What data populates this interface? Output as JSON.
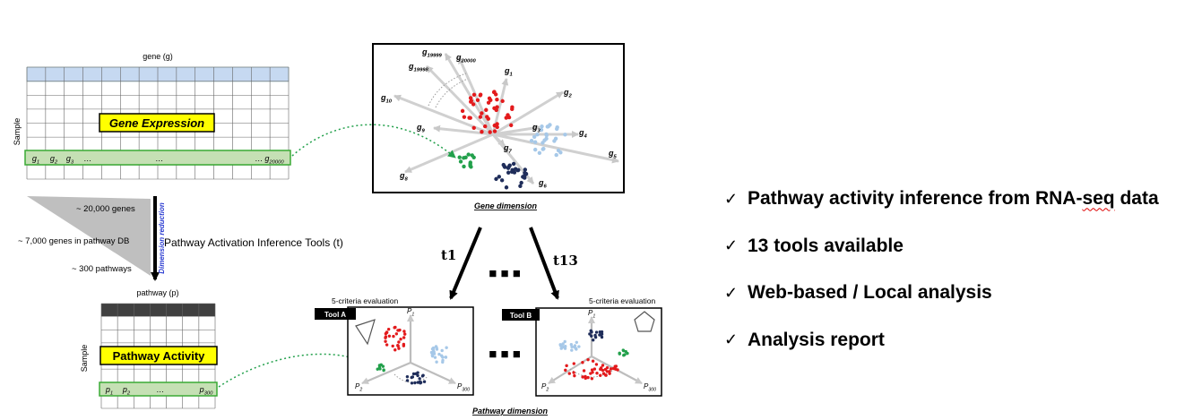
{
  "colors": {
    "expr_header": "#c6d9f1",
    "pathway_header": "#404040",
    "highlight_row": "#c5e0b4",
    "highlight_border": "#3aaa35",
    "label_box": "#ffff00",
    "red": "#e31a1c",
    "light_blue": "#a6c8e8",
    "navy": "#1f2d5a",
    "green": "#22a04b",
    "wedge": "#bfbfbf",
    "arrow_gray": "#bdbdbd"
  },
  "icons": {
    "check": "check-mark",
    "triangle": "fan-shape",
    "pentagon": "pentagon-shape"
  },
  "expression_matrix": {
    "column_header": "gene (g)",
    "row_label": "Sample",
    "title": "Gene Expression",
    "row_cells": [
      "g1",
      "g2",
      "g3",
      "…",
      "…",
      "…",
      "g20000"
    ]
  },
  "pathway_matrix": {
    "column_header": "pathway (p)",
    "row_label": "Sample",
    "title": "Pathway Activity",
    "row_cells": [
      "p1",
      "p2",
      "…",
      "p300"
    ]
  },
  "reduction": {
    "counts": [
      "~ 20,000 genes",
      "~ 7,000 genes in pathway DB",
      "~ 300 pathways"
    ],
    "arrow_label": "Dimension reduction",
    "tools_label": "Pathway Activation Inference Tools (t)"
  },
  "gene_space": {
    "caption": "Gene dimension",
    "axes": [
      "g19999",
      "g19998",
      "g20000",
      "g1",
      "g2",
      "g10",
      "g9",
      "g3",
      "g4",
      "g7",
      "g5",
      "g8",
      "g6"
    ]
  },
  "tool_arrows": {
    "left": "t1",
    "right": "t13",
    "ellipsis": "■ ■ ■"
  },
  "pathway_space": {
    "caption": "Pathway dimension",
    "ellipsis": "■ ■ ■",
    "panels": [
      {
        "tool": "Tool A",
        "eval": "5-criteria evaluation",
        "axes": [
          "P1",
          "P2",
          "P300"
        ]
      },
      {
        "tool": "Tool B",
        "eval": "5-criteria evaluation",
        "axes": [
          "P1",
          "P2",
          "P300"
        ]
      }
    ]
  },
  "features": [
    {
      "check": "✓",
      "text": "Pathway activity inference from RNA-seq data"
    },
    {
      "check": "✓",
      "text": "13 tools available"
    },
    {
      "check": "✓",
      "text": "Web-based / Local analysis"
    },
    {
      "check": "✓",
      "text": "Analysis report"
    }
  ]
}
